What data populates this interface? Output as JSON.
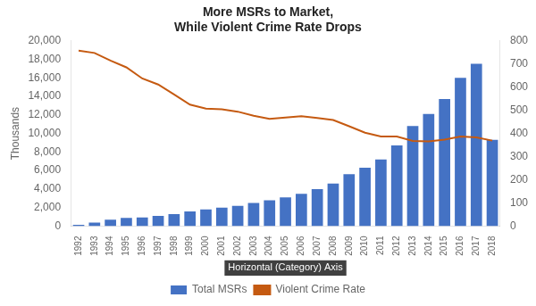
{
  "chart_data": {
    "type": "bar",
    "title": [
      "More MSRs to Market,",
      "While Violent Crime Rate Drops"
    ],
    "ylabel": "Thousands",
    "annotation": "Horizontal (Category) Axis",
    "categories": [
      "1992",
      "1993",
      "1994",
      "1995",
      "1996",
      "1997",
      "1998",
      "1999",
      "2000",
      "2001",
      "2002",
      "2003",
      "2004",
      "2005",
      "2006",
      "2007",
      "2008",
      "2009",
      "2010",
      "2011",
      "2012",
      "2013",
      "2014",
      "2015",
      "2016",
      "2017",
      "2018"
    ],
    "series": [
      {
        "name": "Total MSRs",
        "type": "bar",
        "color": "#4472C4",
        "values": [
          150,
          400,
          700,
          900,
          950,
          1100,
          1300,
          1600,
          1800,
          2000,
          2200,
          2500,
          2800,
          3100,
          3500,
          4000,
          4600,
          5600,
          6300,
          7200,
          8700,
          10800,
          12100,
          13700,
          16000,
          17500,
          9300
        ]
      },
      {
        "name": "Violent Crime Rate",
        "type": "line",
        "color": "#C55A11",
        "axis": "y2",
        "values": [
          757,
          747,
          714,
          685,
          637,
          611,
          568,
          524,
          507,
          504,
          494,
          476,
          463,
          469,
          474,
          467,
          458,
          431,
          403,
          387,
          387,
          368,
          366,
          373,
          387,
          383,
          369
        ]
      }
    ],
    "ylim": [
      0,
      20000
    ],
    "yticks": [
      0,
      {
        "value": 2000,
        "label": "2,000"
      },
      {
        "value": 4000,
        "label": "4,000"
      },
      {
        "value": 6000,
        "label": "6,000"
      },
      {
        "value": 8000,
        "label": "8,000"
      },
      {
        "value": 10000,
        "label": "10,000"
      },
      {
        "value": 12000,
        "label": "12,000"
      },
      {
        "value": 14000,
        "label": "14,000"
      },
      {
        "value": 16000,
        "label": "16,000"
      },
      {
        "value": 18000,
        "label": "18,000"
      },
      {
        "value": 20000,
        "label": "20,000"
      }
    ],
    "y2lim": [
      0,
      800
    ],
    "y2ticks": [
      0,
      100,
      200,
      300,
      400,
      500,
      600,
      700,
      800
    ],
    "grid": false,
    "legend": "bottom"
  }
}
